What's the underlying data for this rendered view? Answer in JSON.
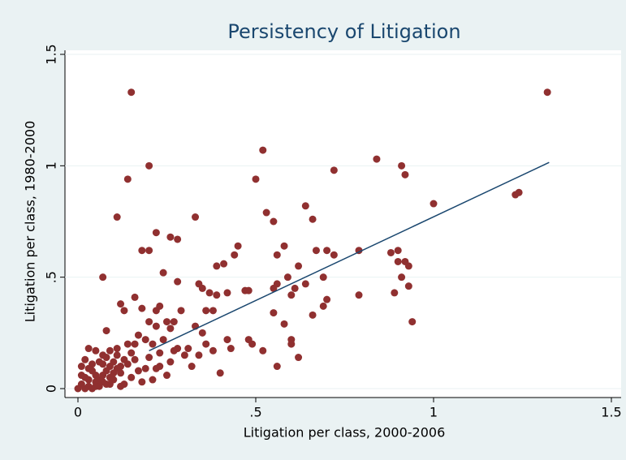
{
  "chart_data": {
    "type": "scatter",
    "title": "Persistency of Litigation",
    "x_label": "Litigation per class, 2000-2006",
    "y_label": "Litigation per class, 1980-2000",
    "color": "#903030",
    "x": [
      0.15,
      1.32,
      0.14,
      0.2,
      0.52,
      0.84,
      0.91,
      0.92,
      0.72,
      0.5,
      0.11,
      0.33,
      0.53,
      0.55,
      0.64,
      0.66,
      1.0,
      1.23,
      1.24,
      0.22,
      0.26,
      0.28,
      0.18,
      0.2,
      0.45,
      0.44,
      0.41,
      0.39,
      0.56,
      0.58,
      0.62,
      0.67,
      0.7,
      0.72,
      0.79,
      0.88,
      0.9,
      0.9,
      0.92,
      0.93,
      0.91,
      0.89,
      0.93,
      0.94,
      0.79,
      0.07,
      0.24,
      0.28,
      0.34,
      0.35,
      0.37,
      0.39,
      0.42,
      0.47,
      0.48,
      0.55,
      0.56,
      0.59,
      0.61,
      0.64,
      0.69,
      0.7,
      0.69,
      0.66,
      0.6,
      0.55,
      0.58,
      0.6,
      0.6,
      0.62,
      0.56,
      0.52,
      0.48,
      0.49,
      0.42,
      0.43,
      0.4,
      0.38,
      0.36,
      0.35,
      0.33,
      0.34,
      0.32,
      0.3,
      0.29,
      0.36,
      0.38,
      0.16,
      0.12,
      0.13,
      0.18,
      0.22,
      0.23,
      0.25,
      0.27,
      0.26,
      0.22,
      0.2,
      0.08,
      0.17,
      0.19,
      0.21,
      0.24,
      0.27,
      0.26,
      0.23,
      0.25,
      0.28,
      0.31,
      0.01,
      0.02,
      0.03,
      0.04,
      0.05,
      0.06,
      0.07,
      0.08,
      0.09,
      0.1,
      0.11,
      0.12,
      0.13,
      0.14,
      0.15,
      0.16,
      0.17,
      0.18,
      0.19,
      0.2,
      0.02,
      0.03,
      0.05,
      0.07,
      0.09,
      0.11,
      0.04,
      0.06,
      0.08,
      0.1,
      0.12,
      0.14,
      0.16,
      0.01,
      0.03,
      0.05,
      0.07,
      0.09,
      0.11,
      0.13,
      0.15,
      0.21,
      0.22,
      0.23,
      0.0,
      0.02,
      0.04,
      0.06,
      0.08,
      0.1,
      0.12,
      0.01,
      0.03,
      0.05,
      0.07,
      0.09
    ],
    "values": [
      1.33,
      1.33,
      0.94,
      1.0,
      1.07,
      1.03,
      1.0,
      0.96,
      0.98,
      0.94,
      0.77,
      0.77,
      0.79,
      0.75,
      0.82,
      0.76,
      0.83,
      0.87,
      0.88,
      0.7,
      0.68,
      0.67,
      0.62,
      0.62,
      0.64,
      0.6,
      0.56,
      0.55,
      0.6,
      0.64,
      0.55,
      0.62,
      0.62,
      0.6,
      0.62,
      0.61,
      0.62,
      0.57,
      0.57,
      0.55,
      0.5,
      0.43,
      0.46,
      0.3,
      0.42,
      0.5,
      0.52,
      0.48,
      0.47,
      0.45,
      0.43,
      0.42,
      0.43,
      0.44,
      0.44,
      0.45,
      0.47,
      0.5,
      0.45,
      0.47,
      0.5,
      0.4,
      0.37,
      0.33,
      0.42,
      0.34,
      0.29,
      0.22,
      0.2,
      0.14,
      0.1,
      0.17,
      0.22,
      0.2,
      0.22,
      0.18,
      0.07,
      0.17,
      0.2,
      0.25,
      0.28,
      0.15,
      0.1,
      0.15,
      0.35,
      0.35,
      0.35,
      0.41,
      0.38,
      0.35,
      0.36,
      0.35,
      0.37,
      0.3,
      0.3,
      0.27,
      0.28,
      0.3,
      0.26,
      0.24,
      0.22,
      0.2,
      0.22,
      0.17,
      0.12,
      0.1,
      0.06,
      0.18,
      0.18,
      0.02,
      0.05,
      0.01,
      0.08,
      0.03,
      0.12,
      0.06,
      0.02,
      0.1,
      0.04,
      0.15,
      0.07,
      0.02,
      0.11,
      0.05,
      0.13,
      0.08,
      0.03,
      0.09,
      0.14,
      0.13,
      0.18,
      0.17,
      0.15,
      0.17,
      0.18,
      0.11,
      0.01,
      0.08,
      0.12,
      0.01,
      0.2,
      0.2,
      0.06,
      0.09,
      0.06,
      0.03,
      0.05,
      0.09,
      0.13,
      0.16,
      0.04,
      0.09,
      0.16,
      0.0,
      0.0,
      0.0,
      0.04,
      0.14,
      0.07,
      0.1,
      0.1,
      0.04,
      0.01,
      0.11,
      0.02
    ],
    "fit": {
      "x": [
        0.2,
        1.325
      ],
      "values": [
        0.17,
        1.015
      ],
      "color": "#1a476f"
    },
    "xlim": [
      0,
      1.5
    ],
    "ylim": [
      0,
      1.5
    ],
    "xticks": [
      0,
      {
        "value": 0.5,
        "label": ".5"
      },
      1,
      1.5
    ],
    "yticks": [
      0,
      {
        "value": 0.5,
        "label": ".5"
      },
      1,
      1.5
    ],
    "grid": true
  }
}
